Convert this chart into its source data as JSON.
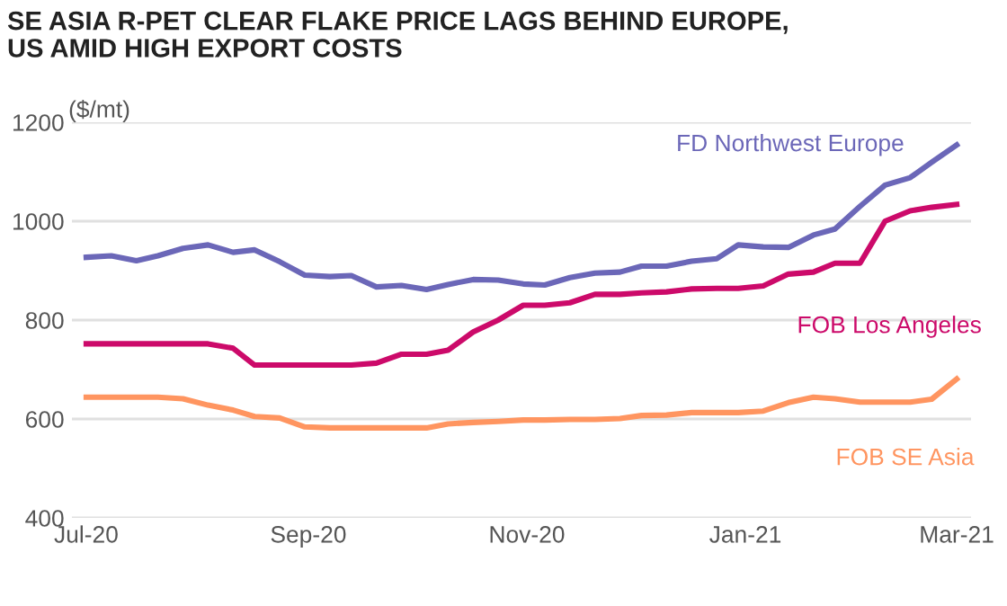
{
  "chart_data": {
    "type": "line",
    "title": "SE ASIA R-PET CLEAR FLAKE PRICE LAGS BEHIND EUROPE,\nUS AMID HIGH EXPORT COSTS",
    "ylabel": "($/mt)",
    "x": [
      "2020-07-01",
      "2020-07-08",
      "2020-07-15",
      "2020-07-21",
      "2020-07-28",
      "2020-08-04",
      "2020-08-11",
      "2020-08-17",
      "2020-08-24",
      "2020-08-31",
      "2020-09-07",
      "2020-09-13",
      "2020-09-20",
      "2020-09-27",
      "2020-10-04",
      "2020-10-10",
      "2020-10-17",
      "2020-10-24",
      "2020-10-31",
      "2020-11-06",
      "2020-11-13",
      "2020-11-20",
      "2020-11-27",
      "2020-12-03",
      "2020-12-10",
      "2020-12-17",
      "2020-12-24",
      "2020-12-30",
      "2021-01-06",
      "2021-01-13",
      "2021-01-20",
      "2021-01-26",
      "2021-02-02",
      "2021-02-09",
      "2021-02-16",
      "2021-02-22",
      "2021-03-01"
    ],
    "series": [
      {
        "name": "FD Northwest Europe",
        "color": "#6b67b8",
        "values": [
          927,
          930,
          920,
          930,
          945,
          952,
          937,
          942,
          918,
          891,
          888,
          890,
          867,
          870,
          862,
          872,
          882,
          881,
          873,
          871,
          886,
          895,
          897,
          909,
          909,
          919,
          924,
          952,
          948,
          947,
          972,
          984,
          1030,
          1073,
          1088,
          1119,
          1154
        ]
      },
      {
        "name": "FOB Los Angeles",
        "color": "#cc0a6a",
        "values": [
          752,
          752,
          752,
          752,
          752,
          752,
          743,
          709,
          709,
          709,
          709,
          709,
          713,
          731,
          731,
          739,
          776,
          800,
          830,
          830,
          835,
          852,
          852,
          855,
          857,
          863,
          864,
          864,
          869,
          893,
          897,
          915,
          915,
          1000,
          1021,
          1028,
          1034
        ]
      },
      {
        "name": "FOB SE Asia",
        "color": "#ff9560",
        "values": [
          644,
          644,
          644,
          644,
          641,
          628,
          618,
          605,
          602,
          584,
          582,
          582,
          582,
          582,
          582,
          590,
          593,
          595,
          598,
          598,
          599,
          599,
          601,
          607,
          608,
          613,
          613,
          613,
          616,
          633,
          644,
          641,
          634,
          634,
          634,
          640,
          681
        ]
      }
    ],
    "xlim": [
      "2020-06-27",
      "2021-03-05"
    ],
    "xticks": [
      {
        "value": "2020-07-01",
        "label": "Jul-20"
      },
      {
        "value": "2020-09-01",
        "label": "Sep-20"
      },
      {
        "value": "2020-11-01",
        "label": "Nov-20"
      },
      {
        "value": "2021-01-01",
        "label": "Jan-21"
      },
      {
        "value": "2021-03-01",
        "label": "Mar-21"
      }
    ],
    "ylim": [
      400,
      1200
    ],
    "yticks": [
      400,
      600,
      800,
      1000,
      1200
    ],
    "grid": "y",
    "legend": false,
    "marker": "none",
    "line_style": "solid"
  }
}
